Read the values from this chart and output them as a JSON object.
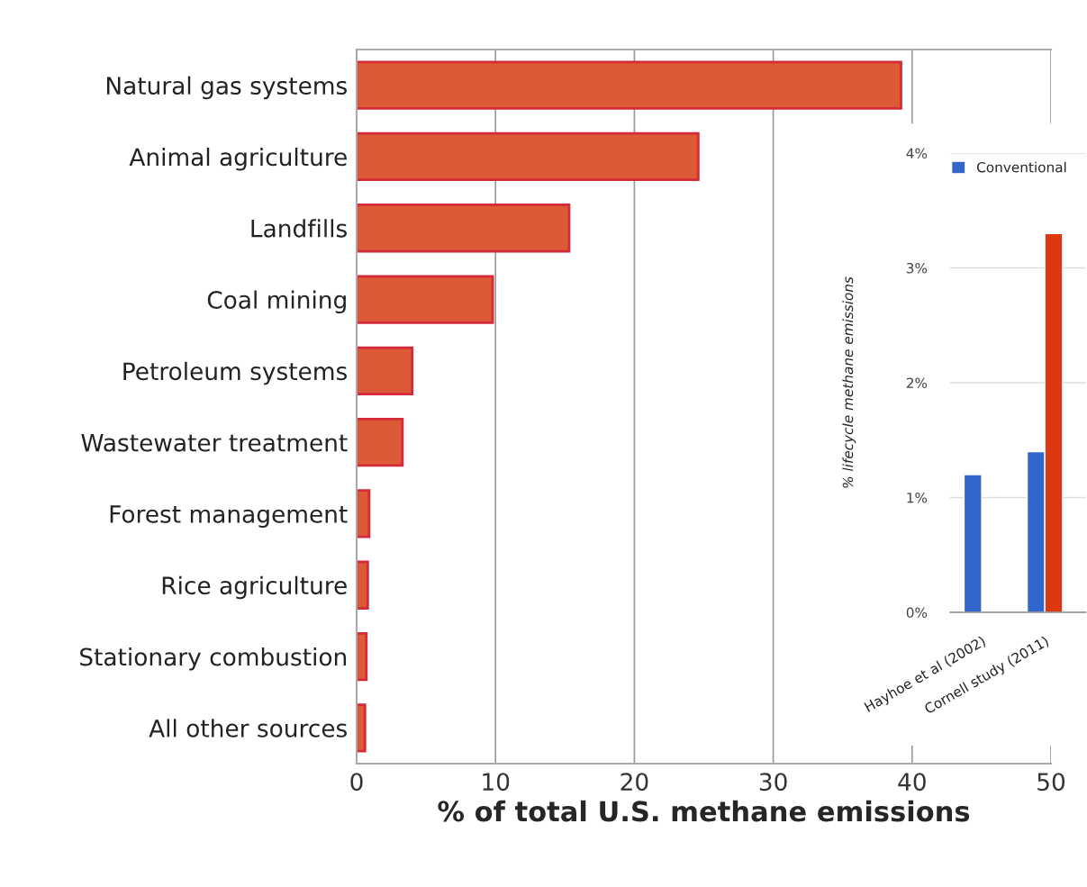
{
  "chart_data": [
    {
      "type": "bar",
      "orientation": "horizontal",
      "xlabel": "% of total U.S. methane emissions",
      "categories": [
        "Natural gas systems",
        "Animal agriculture",
        "Landfills",
        "Coal mining",
        "Petroleum systems",
        "Wastewater treatment",
        "Forest management",
        "Rice agriculture",
        "Stationary combustion",
        "All other sources"
      ],
      "values": [
        39.2,
        24.6,
        15.3,
        9.8,
        4.0,
        3.3,
        0.9,
        0.8,
        0.7,
        0.6
      ],
      "color": "#dc5a35",
      "xlim": [
        0,
        50
      ],
      "xticks": [
        0,
        10,
        20,
        30,
        40,
        50
      ],
      "grid": "x"
    },
    {
      "type": "bar",
      "ylabel": "% lifecycle methane emissions",
      "categories": [
        "Hayhoe et al (2002)",
        "Cornell study (2011)"
      ],
      "series": [
        {
          "name": "Conventional",
          "color": "#3366cc",
          "values": [
            1.2,
            1.4
          ]
        },
        {
          "color": "#dc3912",
          "values": [
            null,
            3.3
          ]
        }
      ],
      "ylim": [
        0,
        4
      ],
      "yticks": [
        {
          "value": 0,
          "label": "0%"
        },
        {
          "value": 1,
          "label": "1%"
        },
        {
          "value": 2,
          "label": "2%"
        },
        {
          "value": 3,
          "label": "3%"
        },
        {
          "value": 4,
          "label": "4%"
        }
      ],
      "grid": "y",
      "legend": "top left"
    }
  ]
}
